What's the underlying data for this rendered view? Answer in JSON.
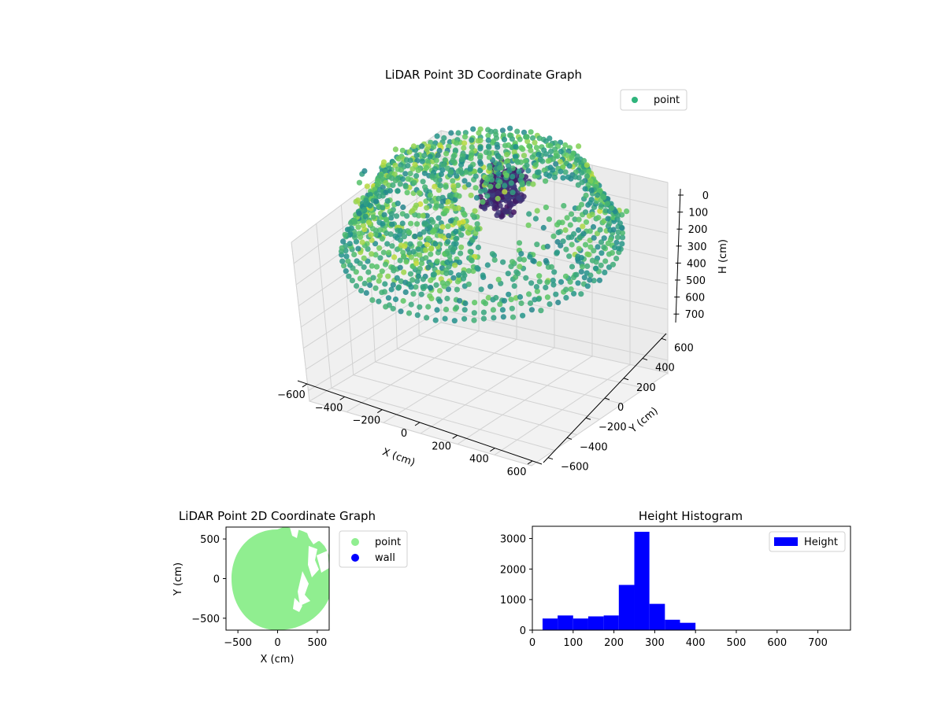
{
  "chart_data": [
    {
      "type": "scatter",
      "projection": "3d",
      "title": "LiDAR Point 3D Coordinate Graph",
      "xlabel": "X (cm)",
      "ylabel": "Y (cm)",
      "zlabel": "H (cm)",
      "xlim": [
        -650,
        650
      ],
      "ylim": [
        -650,
        650
      ],
      "zlim": [
        750,
        0
      ],
      "xticks": [
        -600,
        -400,
        -200,
        0,
        200,
        400,
        600
      ],
      "yticks": [
        -600,
        -400,
        -200,
        0,
        200,
        400,
        600
      ],
      "zticks": [
        0,
        100,
        200,
        300,
        400,
        500,
        600,
        700
      ],
      "colormap": "viridis",
      "grid": true,
      "legend": {
        "placement": "top-right",
        "entries": [
          {
            "label": "point",
            "color": "#2fb47c"
          }
        ]
      },
      "series": [
        {
          "name": "point",
          "description_points": "approx. 7,800 LiDAR returns forming a dome-shaped room scan",
          "sample": [
            {
              "x": -600,
              "y": 0,
              "h": 250
            },
            {
              "x": -450,
              "y": 420,
              "h": 260
            },
            {
              "x": 0,
              "y": 620,
              "h": 260
            },
            {
              "x": 300,
              "y": 560,
              "h": 220
            },
            {
              "x": 560,
              "y": 200,
              "h": 200
            },
            {
              "x": 600,
              "y": -250,
              "h": 230
            },
            {
              "x": 300,
              "y": -560,
              "h": 260
            },
            {
              "x": 0,
              "y": -620,
              "h": 270
            },
            {
              "x": -420,
              "y": -450,
              "h": 270
            },
            {
              "x": 0,
              "y": 0,
              "h": 40
            }
          ]
        }
      ]
    },
    {
      "type": "scatter",
      "title": "LiDAR Point 2D Coordinate Graph",
      "xlabel": "X (cm)",
      "ylabel": "Y (cm)",
      "xlim": [
        -650,
        650
      ],
      "ylim": [
        -650,
        650
      ],
      "xticks": [
        -500,
        0,
        500
      ],
      "yticks": [
        -500,
        0,
        500
      ],
      "legend": {
        "placement": "outside-right",
        "entries": [
          {
            "label": "point",
            "color": "#90ee90"
          },
          {
            "label": "wall",
            "color": "#0000ff"
          }
        ]
      },
      "series": [
        {
          "name": "point",
          "color": "#90ee90",
          "shape": "filled disc, radius ~620 cm, gaps on the right edge"
        },
        {
          "name": "wall",
          "color": "#0000ff",
          "values": []
        }
      ]
    },
    {
      "type": "bar",
      "subtype": "histogram",
      "title": "Height Histogram",
      "xlabel": "",
      "ylabel": "",
      "xlim": [
        0,
        780
      ],
      "ylim": [
        0,
        3400
      ],
      "xticks": [
        0,
        100,
        200,
        300,
        400,
        500,
        600,
        700
      ],
      "yticks": [
        0,
        1000,
        2000,
        3000
      ],
      "color": "#0000ff",
      "legend": {
        "placement": "top-right",
        "entries": [
          {
            "label": "Height",
            "color": "#0000ff"
          }
        ]
      },
      "bins": [
        {
          "start": 25,
          "end": 62,
          "count": 380
        },
        {
          "start": 62,
          "end": 100,
          "count": 480
        },
        {
          "start": 100,
          "end": 137,
          "count": 380
        },
        {
          "start": 137,
          "end": 175,
          "count": 450
        },
        {
          "start": 175,
          "end": 212,
          "count": 480
        },
        {
          "start": 212,
          "end": 250,
          "count": 1480
        },
        {
          "start": 250,
          "end": 287,
          "count": 3220
        },
        {
          "start": 287,
          "end": 325,
          "count": 860
        },
        {
          "start": 325,
          "end": 362,
          "count": 340
        },
        {
          "start": 362,
          "end": 400,
          "count": 240
        }
      ]
    }
  ]
}
